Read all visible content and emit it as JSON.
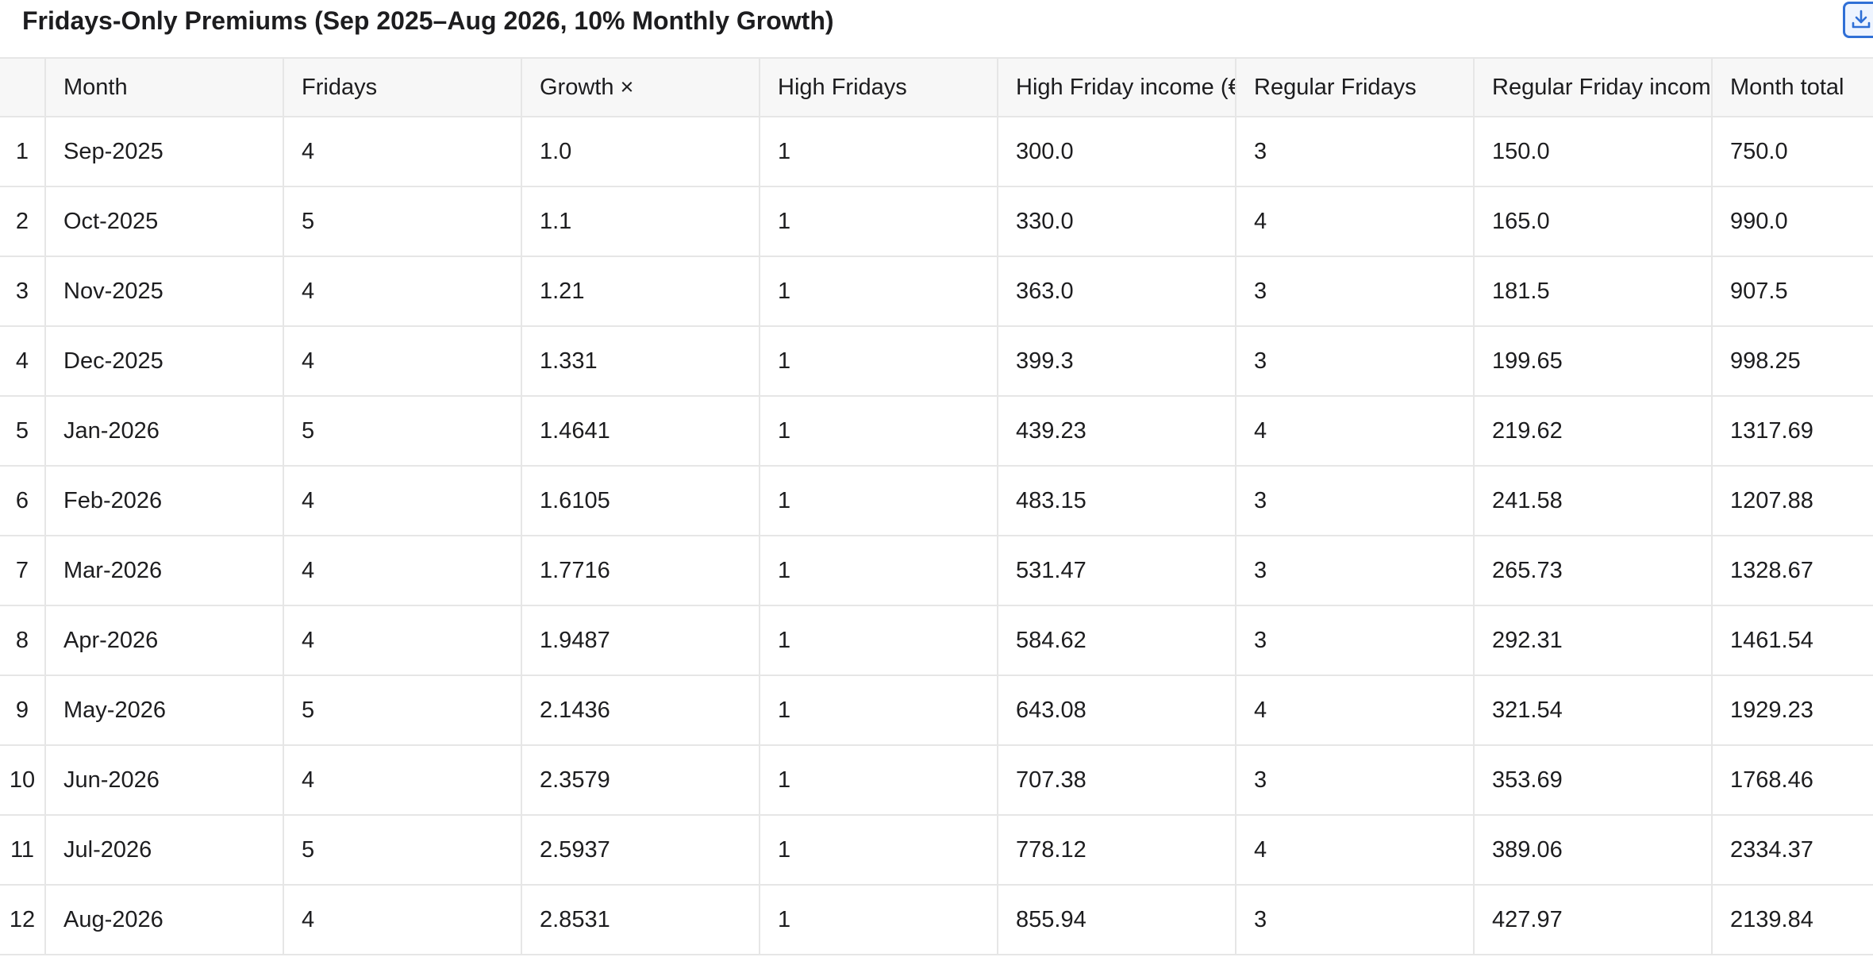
{
  "title": "Fridays-Only Premiums (Sep 2025–Aug 2026, 10% Monthly Growth)",
  "download_icon": "download-icon",
  "accent_color": "#2f6fd6",
  "table": {
    "headers": [
      "",
      "Month",
      "Fridays",
      "Growth ×",
      "High Fridays",
      "High Friday income (€)",
      "Regular Fridays",
      "Regular Friday income (€)",
      "Month total"
    ],
    "rows": [
      [
        "1",
        "Sep-2025",
        "4",
        "1.0",
        "1",
        "300.0",
        "3",
        "150.0",
        "750.0"
      ],
      [
        "2",
        "Oct-2025",
        "5",
        "1.1",
        "1",
        "330.0",
        "4",
        "165.0",
        "990.0"
      ],
      [
        "3",
        "Nov-2025",
        "4",
        "1.21",
        "1",
        "363.0",
        "3",
        "181.5",
        "907.5"
      ],
      [
        "4",
        "Dec-2025",
        "4",
        "1.331",
        "1",
        "399.3",
        "3",
        "199.65",
        "998.25"
      ],
      [
        "5",
        "Jan-2026",
        "5",
        "1.4641",
        "1",
        "439.23",
        "4",
        "219.62",
        "1317.69"
      ],
      [
        "6",
        "Feb-2026",
        "4",
        "1.6105",
        "1",
        "483.15",
        "3",
        "241.58",
        "1207.88"
      ],
      [
        "7",
        "Mar-2026",
        "4",
        "1.7716",
        "1",
        "531.47",
        "3",
        "265.73",
        "1328.67"
      ],
      [
        "8",
        "Apr-2026",
        "4",
        "1.9487",
        "1",
        "584.62",
        "3",
        "292.31",
        "1461.54"
      ],
      [
        "9",
        "May-2026",
        "5",
        "2.1436",
        "1",
        "643.08",
        "4",
        "321.54",
        "1929.23"
      ],
      [
        "10",
        "Jun-2026",
        "4",
        "2.3579",
        "1",
        "707.38",
        "3",
        "353.69",
        "1768.46"
      ],
      [
        "11",
        "Jul-2026",
        "5",
        "2.5937",
        "1",
        "778.12",
        "4",
        "389.06",
        "2334.37"
      ],
      [
        "12",
        "Aug-2026",
        "4",
        "2.8531",
        "1",
        "855.94",
        "3",
        "427.97",
        "2139.84"
      ]
    ]
  }
}
